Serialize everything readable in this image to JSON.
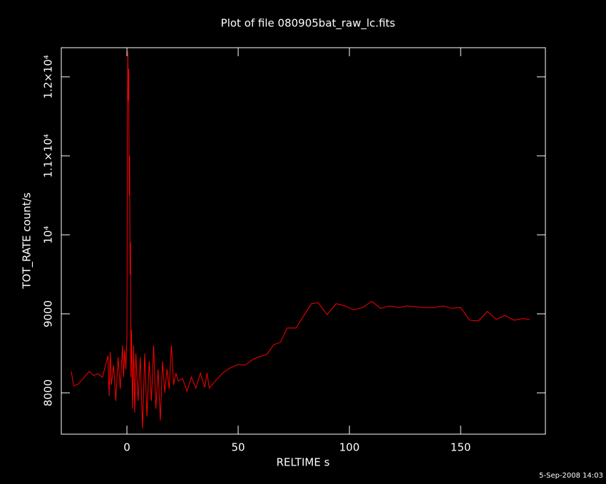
{
  "chart_data": {
    "type": "line",
    "title": "Plot of file 080905bat_raw_lc.fits",
    "x_label": "RELTIME  s",
    "y_label": "TOT_RATE  count/s",
    "footer": "5-Sep-2008 14:03",
    "xlim": [
      -29.5,
      188.1
    ],
    "ylim": [
      7477,
      12369
    ],
    "xticks": [
      0,
      50,
      100,
      150
    ],
    "yticks": [
      8000,
      9000,
      {
        "value": 10000,
        "label": "10⁴"
      },
      {
        "value": 11000,
        "label": "1.1×10⁴"
      },
      {
        "value": 12000,
        "label": "1.2×10⁴"
      }
    ],
    "x": [
      -25,
      -24,
      -22,
      -20,
      -17,
      -15,
      -13,
      -11,
      -8.5,
      -8,
      -7.5,
      -7,
      -6,
      -5,
      -4,
      -3,
      -2,
      -1.5,
      -1,
      -0.5,
      0,
      0.2,
      0.4,
      0.6,
      0.8,
      1,
      1.2,
      1.4,
      1.6,
      1.8,
      2,
      2.5,
      3,
      3.5,
      4,
      5,
      6,
      7,
      8,
      9,
      10,
      11,
      12,
      13,
      14,
      15,
      16,
      17,
      18,
      19,
      20,
      21,
      22,
      23,
      25,
      27,
      29,
      31,
      33,
      35,
      36,
      37,
      40,
      43,
      46,
      50,
      53,
      57,
      60,
      63,
      66,
      69,
      72,
      76,
      80,
      83,
      86,
      90,
      94,
      98,
      102,
      106,
      110,
      114,
      118,
      122,
      126,
      130,
      134,
      138,
      142,
      146,
      150,
      154,
      158,
      162,
      166,
      170,
      174,
      178,
      181
    ],
    "series": [
      {
        "color": "#ff0000",
        "values": [
          8270,
          8090,
          8110,
          8170,
          8270,
          8220,
          8240,
          8200,
          8470,
          7960,
          8520,
          8100,
          8350,
          7900,
          8450,
          8050,
          8600,
          8200,
          8550,
          8300,
          8700,
          11500,
          12320,
          11700,
          12100,
          10500,
          11000,
          9500,
          9900,
          8200,
          8800,
          7800,
          8600,
          7750,
          8500,
          7900,
          8450,
          7550,
          8500,
          7700,
          8400,
          7900,
          8600,
          7800,
          8300,
          7650,
          8400,
          8000,
          8300,
          8050,
          8600,
          8100,
          8250,
          8150,
          8180,
          8020,
          8200,
          8060,
          8250,
          8070,
          8250,
          8060,
          8160,
          8250,
          8310,
          8360,
          8350,
          8430,
          8460,
          8490,
          8610,
          8640,
          8820,
          8820,
          9000,
          9130,
          9140,
          8990,
          9130,
          9100,
          9050,
          9080,
          9160,
          9070,
          9100,
          9080,
          9100,
          9090,
          9080,
          9080,
          9100,
          9070,
          9080,
          8920,
          8910,
          9030,
          8930,
          8980,
          8920,
          8940,
          8930
        ]
      }
    ]
  }
}
